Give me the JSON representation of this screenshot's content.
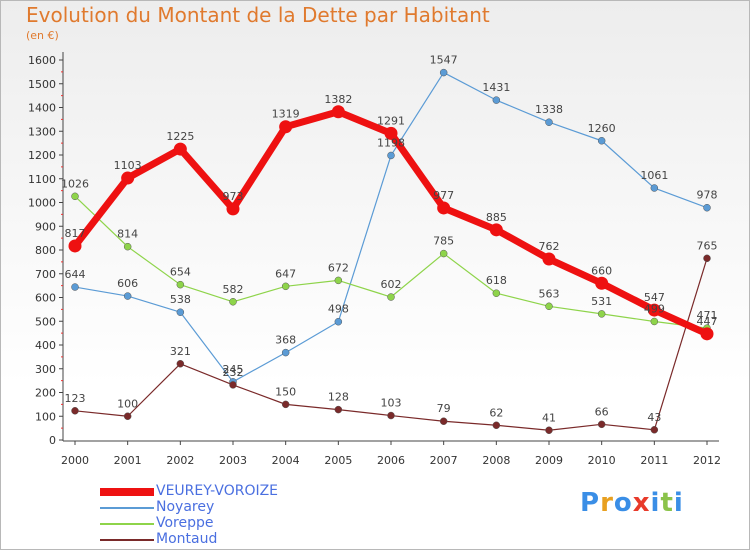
{
  "title": "Evolution du Montant de la Dette par Habitant",
  "subtitle": "(en €)",
  "logo": {
    "text": "Proxiti",
    "letters": [
      "P",
      "r",
      "o",
      "x",
      "i",
      "t",
      "i"
    ],
    "colors": [
      "#3a8ee6",
      "#e8a020",
      "#3a8ee6",
      "#e83a2a",
      "#3a8ee6",
      "#8bc34a",
      "#3a8ee6"
    ]
  },
  "chart_data": {
    "type": "line",
    "x": [
      "2000",
      "2001",
      "2002",
      "2003",
      "2004",
      "2005",
      "2006",
      "2007",
      "2008",
      "2009",
      "2010",
      "2011",
      "2012"
    ],
    "ylim": [
      0,
      1600
    ],
    "yticks": [
      0,
      100,
      200,
      300,
      400,
      500,
      600,
      700,
      800,
      900,
      1000,
      1100,
      1200,
      1300,
      1400,
      1500,
      1600
    ],
    "grid": false,
    "legend_position": "bottom-left",
    "series": [
      {
        "name": "VEUREY-VOROIZE",
        "color": "#ee1111",
        "width": 7,
        "values": [
          817,
          1103,
          1225,
          973,
          1319,
          1382,
          1291,
          977,
          885,
          762,
          660,
          547,
          447
        ],
        "labels": [
          "817",
          "1103",
          "1225",
          "973",
          "1319",
          "1382",
          "1291",
          "977",
          "885",
          "762",
          "660",
          "547",
          "447"
        ]
      },
      {
        "name": "Noyarey",
        "color": "#5b9bd5",
        "width": 1.2,
        "values": [
          644,
          606,
          538,
          245,
          368,
          498,
          1198,
          1547,
          1431,
          1338,
          1260,
          1061,
          978
        ],
        "labels": [
          "644",
          "606",
          "538",
          "245",
          "368",
          "498",
          "1198",
          "1547",
          "1431",
          "1338",
          "1260",
          "1061",
          "978"
        ]
      },
      {
        "name": "Voreppe",
        "color": "#8ed44a",
        "width": 1.2,
        "values": [
          1026,
          814,
          654,
          582,
          647,
          672,
          602,
          785,
          618,
          563,
          531,
          499,
          471
        ],
        "labels": [
          "1026",
          "814",
          "654",
          "582",
          "647",
          "672",
          "602",
          "785",
          "618",
          "563",
          "531",
          "499",
          "471"
        ]
      },
      {
        "name": "Montaud",
        "color": "#7a2a2a",
        "width": 1.2,
        "values": [
          123,
          100,
          321,
          232,
          150,
          128,
          103,
          79,
          62,
          41,
          66,
          43,
          765
        ],
        "labels": [
          "123",
          "100",
          "321",
          "232",
          "150",
          "128",
          "103",
          "79",
          "62",
          "41",
          "66",
          "43",
          "765"
        ]
      }
    ]
  }
}
